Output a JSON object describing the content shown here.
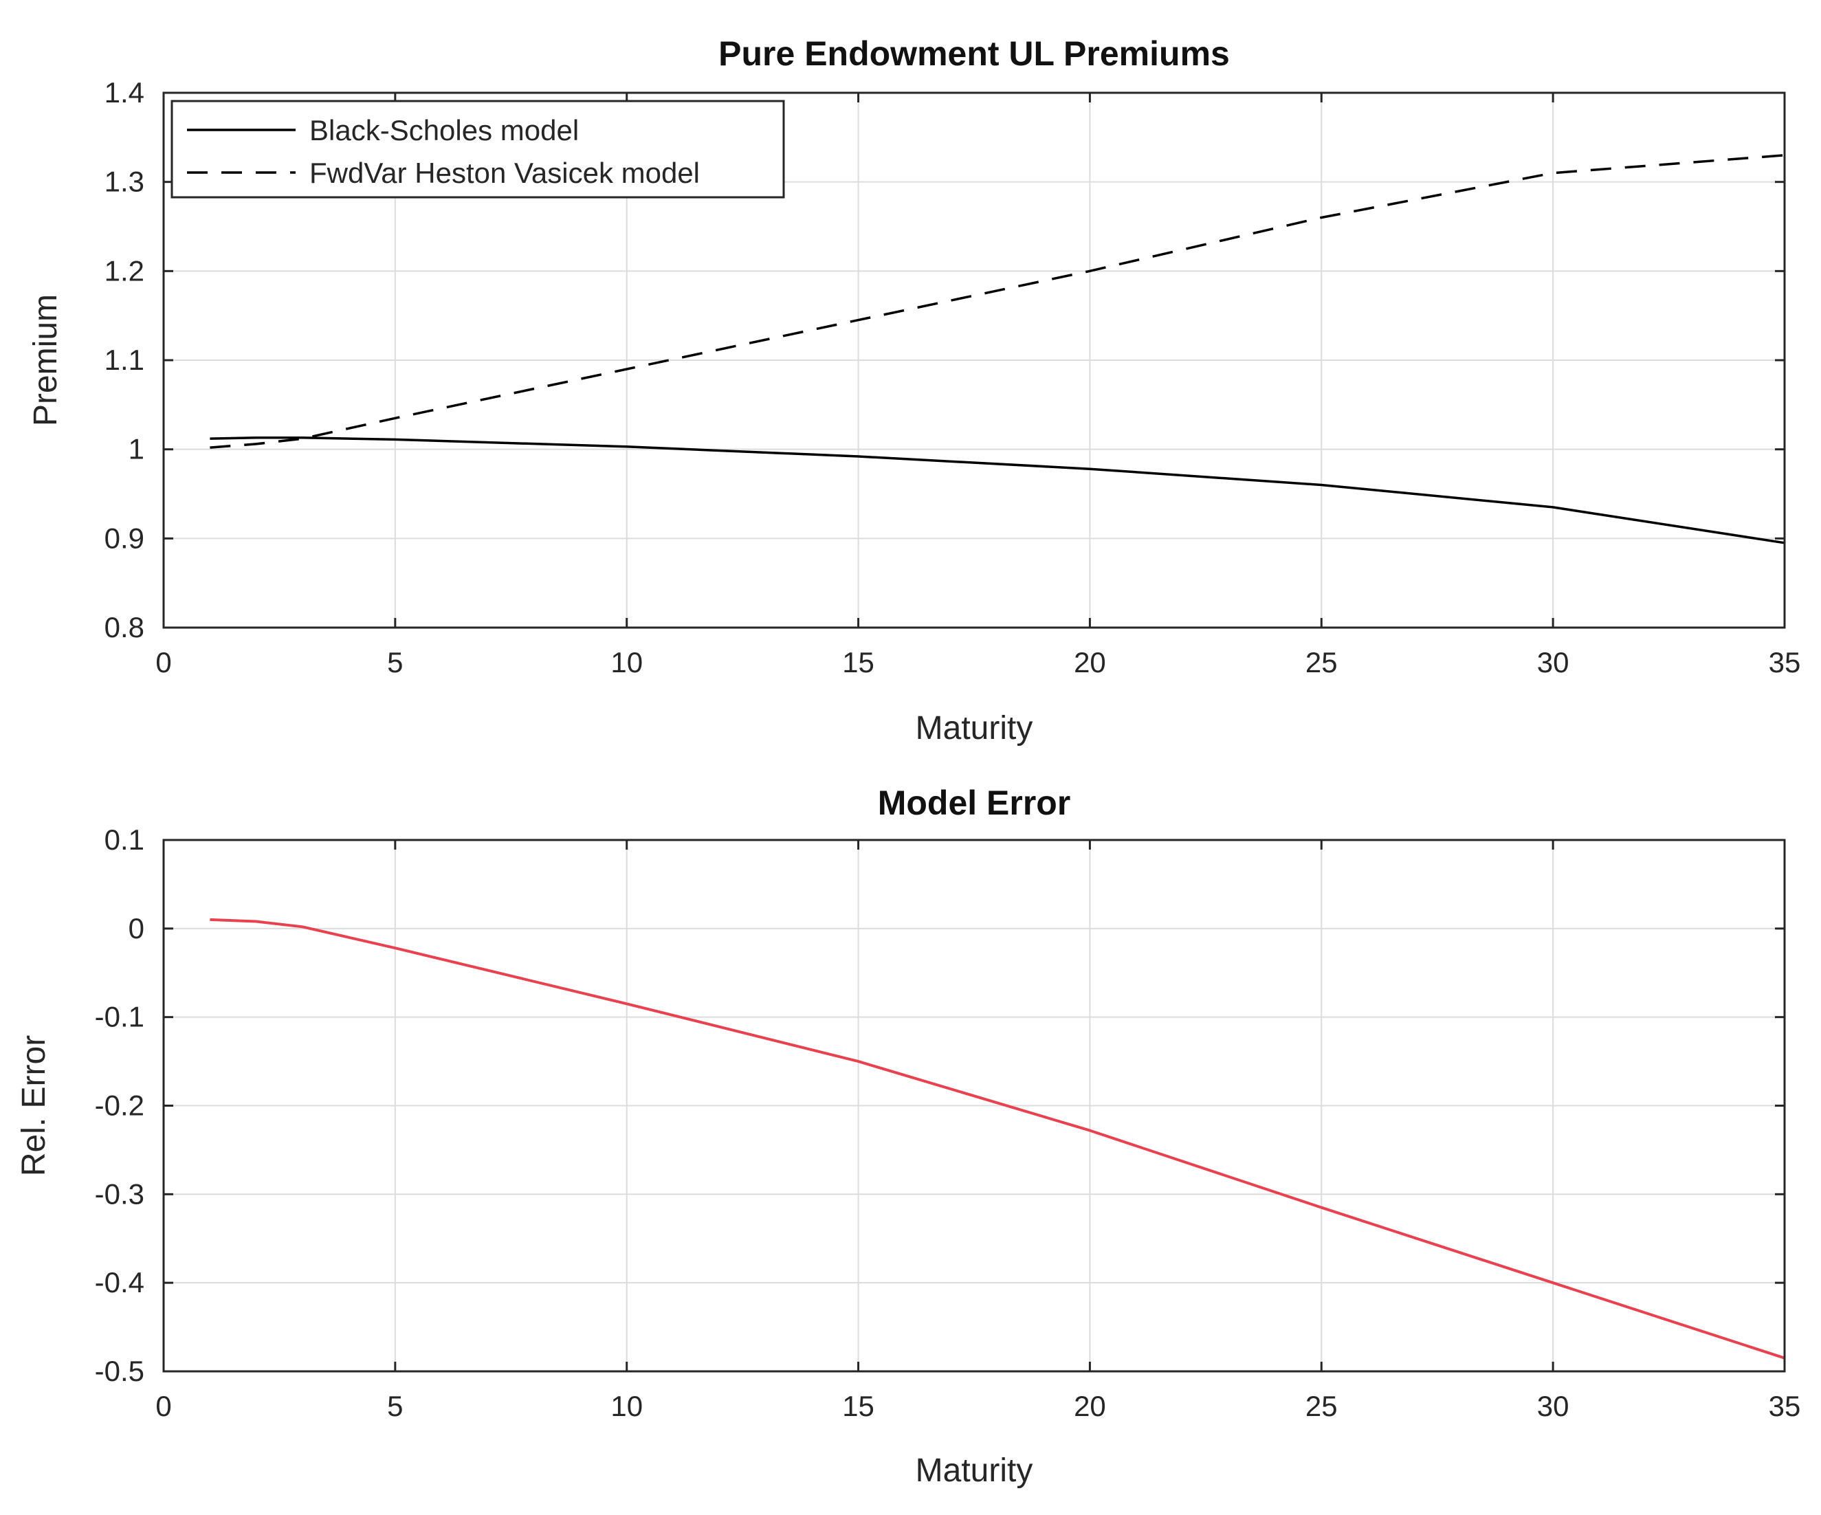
{
  "chart_data": [
    {
      "type": "line",
      "title": "Pure Endowment UL Premiums",
      "xlabel": "Maturity",
      "ylabel": "Premium",
      "xlim": [
        0,
        35
      ],
      "ylim": [
        0.8,
        1.4
      ],
      "xticks": [
        "0",
        "5",
        "10",
        "15",
        "20",
        "25",
        "30",
        "35"
      ],
      "yticks": [
        "0.8",
        "0.9",
        "1",
        "1.1",
        "1.2",
        "1.3",
        "1.4"
      ],
      "xtick_values": [
        0,
        5,
        10,
        15,
        20,
        25,
        30,
        35
      ],
      "ytick_values": [
        0.8,
        0.9,
        1.0,
        1.1,
        1.2,
        1.3,
        1.4
      ],
      "grid": true,
      "legend_position": "top-left",
      "x": [
        1,
        2,
        3,
        5,
        10,
        15,
        20,
        25,
        30,
        35
      ],
      "series": [
        {
          "name": "Black-Scholes model",
          "style": "solid",
          "color": "#000000",
          "values": [
            1.012,
            1.013,
            1.013,
            1.011,
            1.003,
            0.992,
            0.978,
            0.96,
            0.935,
            0.895
          ]
        },
        {
          "name": "FwdVar Heston Vasicek model",
          "style": "dashed",
          "color": "#000000",
          "values": [
            1.002,
            1.006,
            1.012,
            1.035,
            1.09,
            1.145,
            1.2,
            1.26,
            1.31,
            1.33
          ]
        }
      ]
    },
    {
      "type": "line",
      "title": "Model Error",
      "xlabel": "Maturity",
      "ylabel": "Rel. Error",
      "xlim": [
        0,
        35
      ],
      "ylim": [
        -0.5,
        0.1
      ],
      "xticks": [
        "0",
        "5",
        "10",
        "15",
        "20",
        "25",
        "30",
        "35"
      ],
      "yticks": [
        "-0.5",
        "-0.4",
        "-0.3",
        "-0.2",
        "-0.1",
        "0",
        "0.1"
      ],
      "xtick_values": [
        0,
        5,
        10,
        15,
        20,
        25,
        30,
        35
      ],
      "ytick_values": [
        -0.5,
        -0.4,
        -0.3,
        -0.2,
        -0.1,
        0,
        0.1
      ],
      "grid": true,
      "x": [
        1,
        2,
        3,
        5,
        10,
        15,
        20,
        25,
        30,
        35
      ],
      "series": [
        {
          "style": "solid",
          "color": "#e8414f",
          "values": [
            0.01,
            0.008,
            0.002,
            -0.022,
            -0.085,
            -0.15,
            -0.228,
            -0.315,
            -0.4,
            -0.485
          ]
        }
      ]
    }
  ]
}
